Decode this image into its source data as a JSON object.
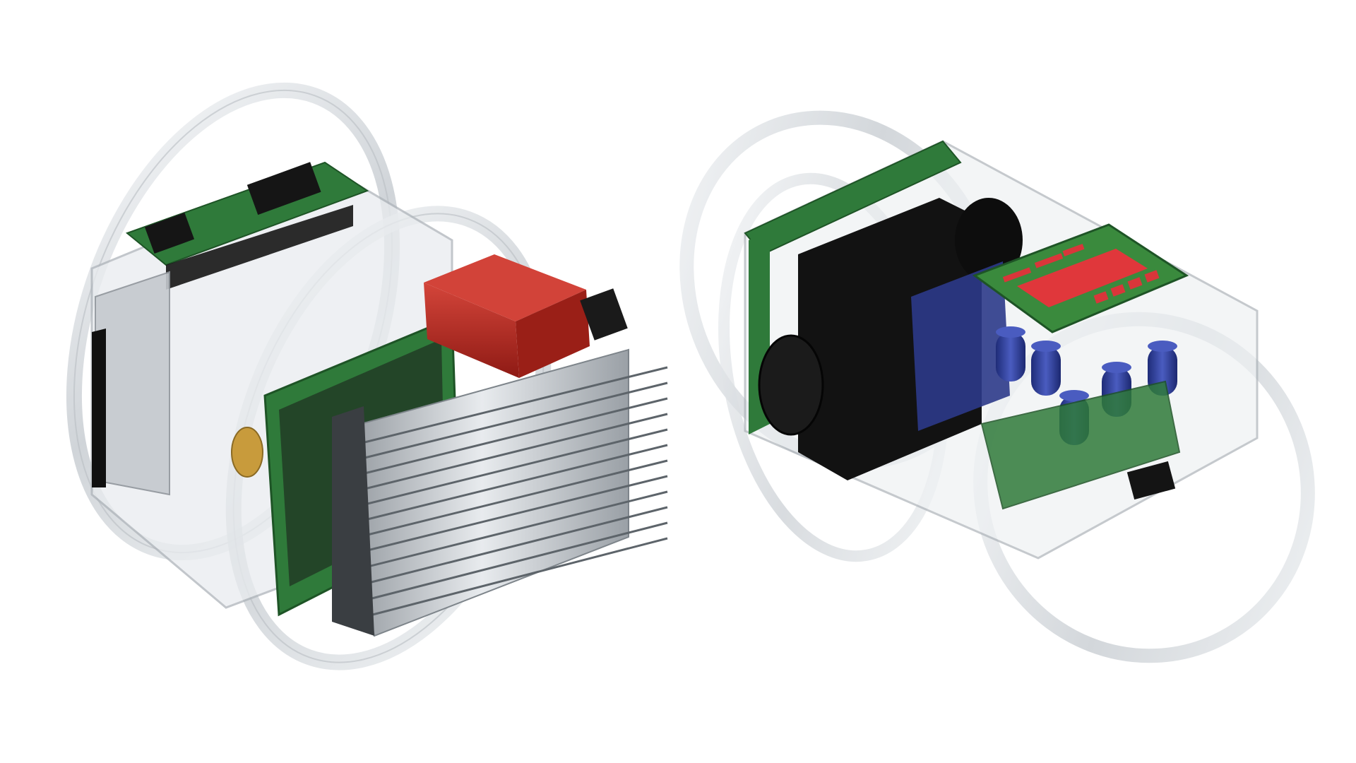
{
  "scene": {
    "background": "#ffffff",
    "objects": [
      {
        "id": "enclosure-left",
        "description_icon": "robot-enclosure-with-heatsink",
        "colors": {
          "ring": "#d6dade",
          "pcb": "#2f7a3a",
          "frame": "#e6e9ec",
          "accent": "#b4241c",
          "heatsink": "#c9cdd2",
          "dark": "#151515"
        }
      },
      {
        "id": "enclosure-right",
        "description_icon": "robot-enclosure-with-capacitors",
        "colors": {
          "ring": "#d6dade",
          "pcb": "#2f7a3a",
          "frame": "#e6e9ec",
          "accent": "#d9363a",
          "dark": "#111111",
          "capacitor": "#2e3f9c",
          "blue_board": "#2c3a8a"
        }
      }
    ]
  }
}
